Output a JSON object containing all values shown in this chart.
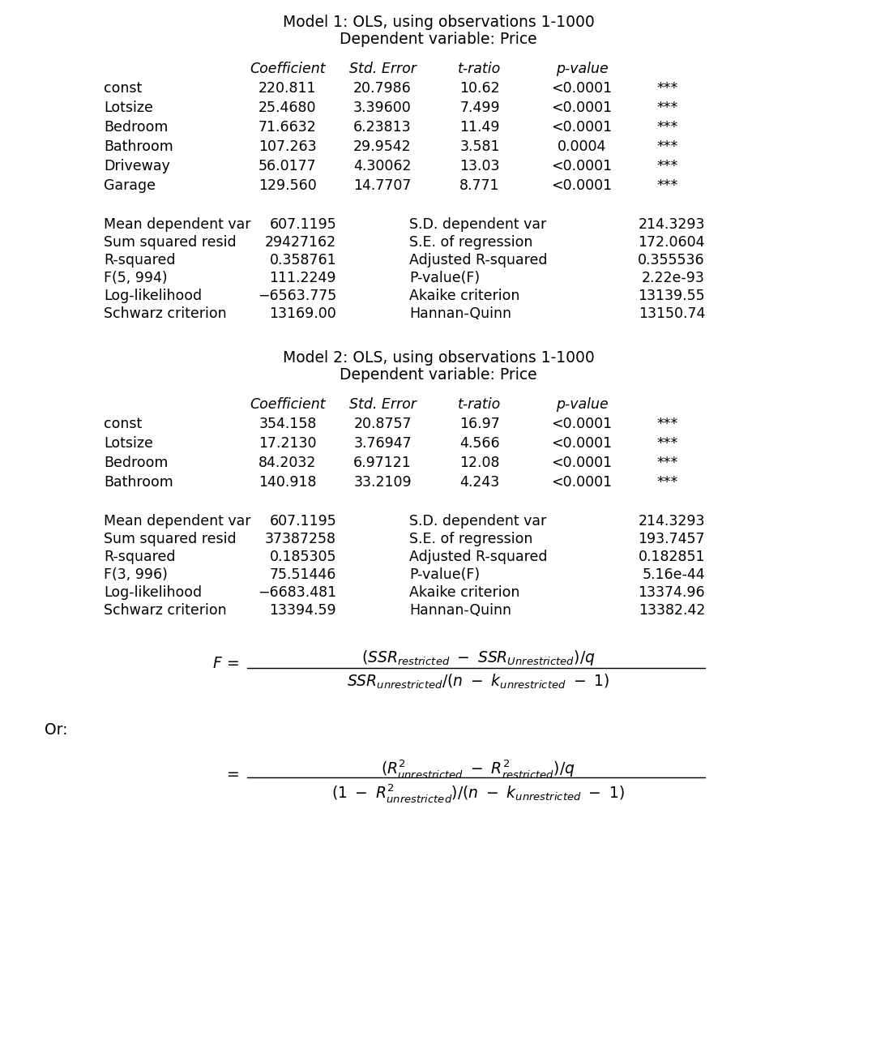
{
  "bg_color": "#ffffff",
  "model1": {
    "title1": "Model 1: OLS, using observations 1-1000",
    "title2": "Dependent variable: Price",
    "rows": [
      [
        "const",
        "220.811",
        "20.7986",
        "10.62",
        "<0.0001",
        "***"
      ],
      [
        "Lotsize",
        "25.4680",
        "3.39600",
        "7.499",
        "<0.0001",
        "***"
      ],
      [
        "Bedroom",
        "71.6632",
        "6.23813",
        "11.49",
        "<0.0001",
        "***"
      ],
      [
        "Bathroom",
        "107.263",
        "29.9542",
        "3.581",
        "0.0004",
        "***"
      ],
      [
        "Driveway",
        "56.0177",
        "4.30062",
        "13.03",
        "<0.0001",
        "***"
      ],
      [
        "Garage",
        "129.560",
        "14.7707",
        "8.771",
        "<0.0001",
        "***"
      ]
    ],
    "stats_left": [
      [
        "Mean dependent var",
        "607.1195"
      ],
      [
        "Sum squared resid",
        "29427162"
      ],
      [
        "R-squared",
        "0.358761"
      ],
      [
        "F(5, 994)",
        "111.2249"
      ],
      [
        "Log-likelihood",
        "−6563.775"
      ],
      [
        "Schwarz criterion",
        "13169.00"
      ]
    ],
    "stats_right": [
      [
        "S.D. dependent var",
        "214.3293"
      ],
      [
        "S.E. of regression",
        "172.0604"
      ],
      [
        "Adjusted R-squared",
        "0.355536"
      ],
      [
        "P-value(F)",
        "2.22e-93"
      ],
      [
        "Akaike criterion",
        "13139.55"
      ],
      [
        "Hannan-Quinn",
        "13150.74"
      ]
    ]
  },
  "model2": {
    "title1": "Model 2: OLS, using observations 1-1000",
    "title2": "Dependent variable: Price",
    "rows": [
      [
        "const",
        "354.158",
        "20.8757",
        "16.97",
        "<0.0001",
        "***"
      ],
      [
        "Lotsize",
        "17.2130",
        "3.76947",
        "4.566",
        "<0.0001",
        "***"
      ],
      [
        "Bedroom",
        "84.2032",
        "6.97121",
        "12.08",
        "<0.0001",
        "***"
      ],
      [
        "Bathroom",
        "140.918",
        "33.2109",
        "4.243",
        "<0.0001",
        "***"
      ]
    ],
    "stats_left": [
      [
        "Mean dependent var",
        "607.1195"
      ],
      [
        "Sum squared resid",
        "37387258"
      ],
      [
        "R-squared",
        "0.185305"
      ],
      [
        "F(3, 996)",
        "75.51446"
      ],
      [
        "Log-likelihood",
        "−6683.481"
      ],
      [
        "Schwarz criterion",
        "13394.59"
      ]
    ],
    "stats_right": [
      [
        "S.D. dependent var",
        "214.3293"
      ],
      [
        "S.E. of regression",
        "193.7457"
      ],
      [
        "Adjusted R-squared",
        "0.182851"
      ],
      [
        "P-value(F)",
        "5.16e-44"
      ],
      [
        "Akaike criterion",
        "13374.96"
      ],
      [
        "Hannan-Quinn",
        "13382.42"
      ]
    ]
  },
  "col_headers": [
    "Coefficient",
    "Std. Error",
    "t-ratio",
    "p-value"
  ],
  "or_label": "Or:"
}
